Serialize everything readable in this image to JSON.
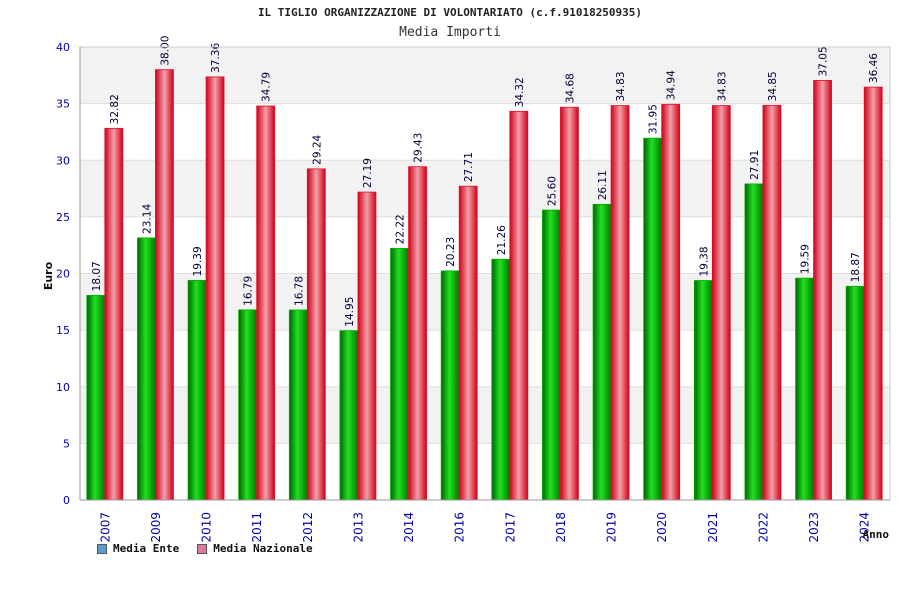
{
  "header": {
    "title": "IL TIGLIO ORGANIZZAZIONE DI VOLONTARIATO (c.f.91018250935)",
    "subtitle": "Media Importi"
  },
  "legend": {
    "items": [
      {
        "label": "Media Ente",
        "color": "#5b9bd5"
      },
      {
        "label": "Media Nazionale",
        "color": "#e07ba0"
      }
    ]
  },
  "colors": {
    "ente_bar": "#00b000",
    "nazionale_bar": "#e0102a",
    "axis_text": "#0000aa",
    "band": "#f2f2f2"
  },
  "chart_data": {
    "type": "bar",
    "title": "IL TIGLIO ORGANIZZAZIONE DI VOLONTARIATO (c.f.91018250935)",
    "subtitle": "Media Importi",
    "xlabel": "Anno",
    "ylabel": "Euro",
    "ylim": [
      0,
      40
    ],
    "yticks": [
      0,
      5,
      10,
      15,
      20,
      25,
      30,
      35,
      40
    ],
    "grid": true,
    "legend_position": "bottom-left",
    "categories": [
      "2007",
      "2009",
      "2010",
      "2011",
      "2012",
      "2013",
      "2014",
      "2016",
      "2017",
      "2018",
      "2019",
      "2020",
      "2021",
      "2022",
      "2023",
      "2024"
    ],
    "series": [
      {
        "name": "Media Ente",
        "values": [
          18.07,
          23.14,
          19.39,
          16.79,
          16.78,
          14.95,
          22.22,
          20.23,
          21.26,
          25.6,
          26.11,
          31.95,
          19.38,
          27.91,
          19.59,
          18.87
        ]
      },
      {
        "name": "Media Nazionale",
        "values": [
          32.82,
          38.0,
          37.36,
          34.79,
          29.24,
          27.19,
          29.43,
          27.71,
          34.32,
          34.68,
          34.83,
          34.94,
          34.83,
          34.85,
          37.05,
          36.46
        ]
      }
    ],
    "value_labels": [
      [
        "18.07",
        "23.14",
        "19.39",
        "16.79",
        "16.78",
        "14.95",
        "22.22",
        "20.23",
        "21.26",
        "25.60",
        "26.11",
        "31.95",
        "19.38",
        "27.91",
        "19.59",
        "18.87"
      ],
      [
        "32.82",
        "38.00",
        "37.36",
        "34.79",
        "29.24",
        "27.19",
        "29.43",
        "27.71",
        "34.32",
        "34.68",
        "34.83",
        "34.94",
        "34.83",
        "34.85",
        "37.05",
        "36.46"
      ]
    ]
  }
}
